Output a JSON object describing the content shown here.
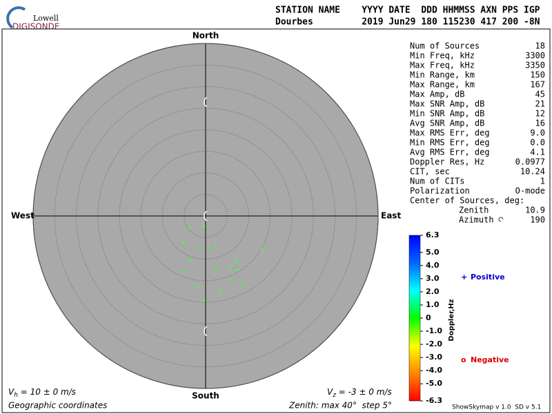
{
  "header": {
    "lines": [
      "STATION NAME    YYYY DATE  DDD HHMMSS AXN PPS IGP",
      "Dourbes         2019 Jun29 180 115230 417 200 -8N"
    ]
  },
  "logo": {
    "top": "Lowell",
    "bottom": "DIGISONDE"
  },
  "stats": [
    {
      "label": "Num of Sources",
      "value": "18"
    },
    {
      "label": "Min Freq, kHz",
      "value": "3300"
    },
    {
      "label": "Max Freq, kHz",
      "value": "3350"
    },
    {
      "label": "Min Range, km",
      "value": "150"
    },
    {
      "label": "Max Range, km",
      "value": "167"
    },
    {
      "label": "Max Amp, dB",
      "value": "45"
    },
    {
      "label": "Max SNR Amp, dB",
      "value": "21"
    },
    {
      "label": "Min SNR Amp, dB",
      "value": "12"
    },
    {
      "label": "Avg SNR Amp, dB",
      "value": "16"
    },
    {
      "label": "Max RMS Err, deg",
      "value": "9.0"
    },
    {
      "label": "Min RMS Err, deg",
      "value": "0.0"
    },
    {
      "label": "Avg RMS Err, deg",
      "value": "4.1"
    },
    {
      "label": "Doppler Res, Hz",
      "value": "0.0977"
    },
    {
      "label": "CIT, sec",
      "value": "10.24"
    },
    {
      "label": "Num of CITs",
      "value": "1"
    },
    {
      "label": "Polarization",
      "value": "O-mode"
    }
  ],
  "center_title": "Center of Sources, deg:",
  "center": [
    {
      "label": "Zenith",
      "value": "10.9"
    },
    {
      "label": "Azimuth",
      "value": "190"
    }
  ],
  "chart_data": {
    "type": "scatter",
    "directions": {
      "north": "North",
      "south": "South",
      "west": "West",
      "east": "East"
    },
    "xlim": [
      -40,
      40
    ],
    "ylim": [
      -40,
      40
    ],
    "rticks": [
      5,
      10,
      15,
      20,
      25,
      30,
      35,
      40
    ],
    "series": [
      {
        "color": "#44ff44",
        "x": [
          -3.8,
          -0.5,
          -5.1,
          -1.3,
          0.6,
          2.4,
          13.1,
          -3.5,
          7.2,
          5.8,
          -5.0,
          2.4,
          7.5,
          5.9,
          8.5,
          -1.9,
          3.4,
          -0.5
        ],
        "y": [
          -2.7,
          -2.4,
          -6.2,
          -7.2,
          -7.5,
          -6.9,
          -7.8,
          -10.2,
          -10.6,
          -11.7,
          -12.8,
          -12.0,
          -12.6,
          -14.6,
          -15.5,
          -16.5,
          -17.3,
          -19.7
        ]
      }
    ],
    "legend": [
      {
        "marker": "+",
        "label": "Positive",
        "color": "#0000cc"
      },
      {
        "marker": "o",
        "label": "Negative",
        "color": "#dd0000"
      }
    ],
    "colorbar": {
      "title": "Doppler,Hz",
      "lim": [
        -6.3,
        6.3
      ],
      "colors": [
        "#ff0000",
        "#ff8800",
        "#ffff00",
        "#00ff00",
        "#00ffff",
        "#0066ff",
        "#0000ff"
      ],
      "ticks": [
        6.3,
        {
          "value": 5,
          "label": "5.0"
        },
        {
          "value": 4,
          "label": "4.0"
        },
        {
          "value": 3,
          "label": "3.0"
        },
        {
          "value": 2,
          "label": "2.0"
        },
        {
          "value": 1,
          "label": "1.0"
        },
        0,
        {
          "value": -1,
          "label": "-1.0"
        },
        {
          "value": -2,
          "label": "-2.0"
        },
        {
          "value": -3,
          "label": "-3.0"
        },
        {
          "value": -4,
          "label": "-4.0"
        },
        {
          "value": -5,
          "label": "-5.0"
        },
        -6.3
      ]
    }
  },
  "footer": {
    "vh": {
      "symbol": "V",
      "sub": "h",
      "text": " = 10 ± 0 m/s"
    },
    "vz": {
      "symbol": "V",
      "sub": "z",
      "text": " = -3 ± 0 m/s"
    },
    "coords": "Geographic coordinates",
    "zenith": "Zenith: max 40°  step 5°",
    "version": "ShowSkymap v 1.0  SD v 5.1"
  }
}
